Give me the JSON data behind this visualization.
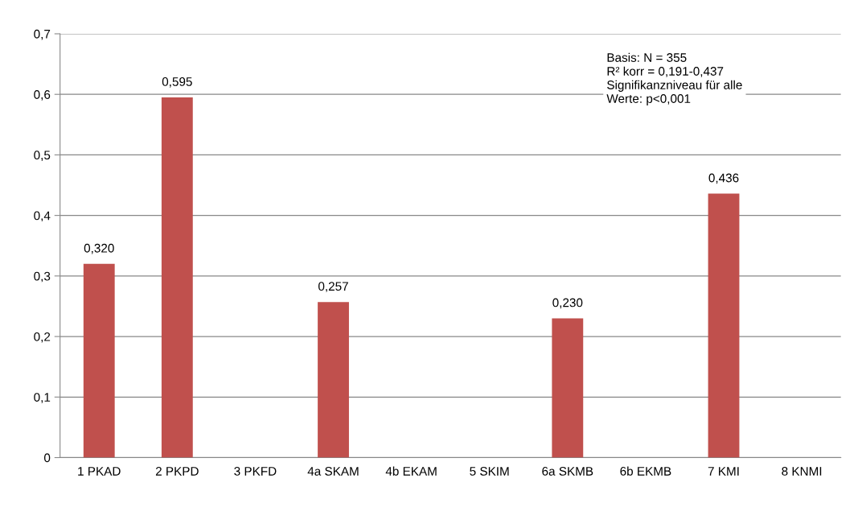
{
  "chart_data": {
    "type": "bar",
    "categories": [
      "1 PKAD",
      "2 PKPD",
      "3 PKFD",
      "4a SKAM",
      "4b EKAM",
      "5 SKIM",
      "6a SKMB",
      "6b EKMB",
      "7 KMI",
      "8 KNMI"
    ],
    "values": [
      0.32,
      0.595,
      null,
      0.257,
      null,
      null,
      0.23,
      null,
      0.436,
      null
    ],
    "value_labels": [
      "0,320",
      "0,595",
      null,
      "0,257",
      null,
      null,
      "0,230",
      null,
      "0,436",
      null
    ],
    "color": "#c0504d",
    "ylim": [
      0,
      0.7
    ],
    "yticks": [
      {
        "value": 0,
        "label": "0"
      },
      {
        "value": 0.1,
        "label": "0,1"
      },
      {
        "value": 0.2,
        "label": "0,2"
      },
      {
        "value": 0.3,
        "label": "0,3"
      },
      {
        "value": 0.4,
        "label": "0,4"
      },
      {
        "value": 0.5,
        "label": "0,5"
      },
      {
        "value": 0.6,
        "label": "0,6"
      },
      {
        "value": 0.7,
        "label": "0,7"
      }
    ],
    "grid": "y",
    "annotations": [
      "Basis: N = 355\nR² korr = 0,191-0,437\nSignifikanzniveau für alle\nWerte: p<0,001"
    ]
  }
}
